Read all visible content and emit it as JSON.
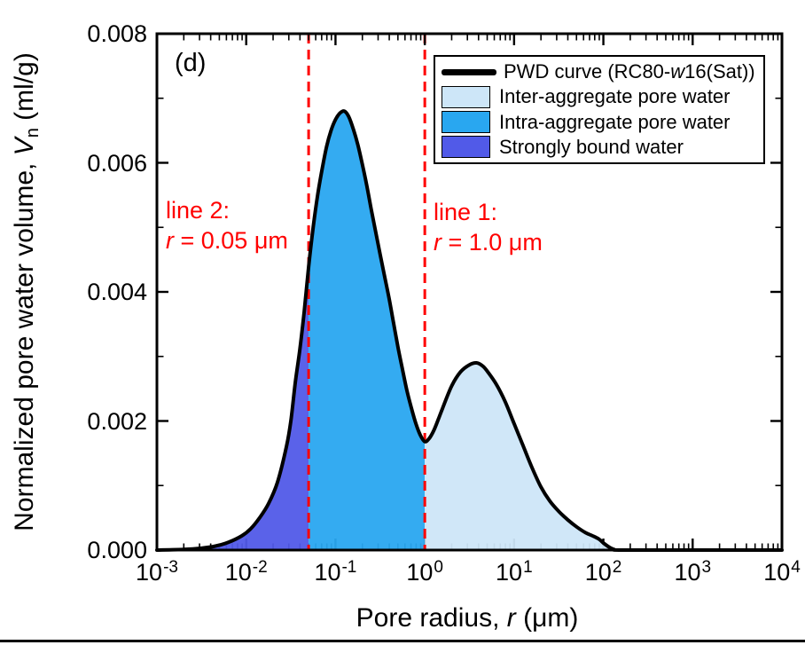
{
  "figure": {
    "panel_label": "(d)"
  },
  "colors": {
    "curve": "#000000",
    "annotation_red": "#FF0000",
    "inter_aggregate": "#CDE6F8",
    "intra_aggregate": "#29A7F0",
    "strongly_bound": "#515AE8",
    "axis": "#000000"
  },
  "axes": {
    "x": {
      "title_pre": "Pore radius, ",
      "title_italic": "r",
      "title_post": " (μm)"
    },
    "y": {
      "title_pre": "Normalized pore water volume, ",
      "title_italic": "V",
      "title_sub": "n",
      "title_post": " (ml/g)"
    }
  },
  "legend": {
    "pwd": {
      "pre": "PWD curve (RC80-",
      "italic": "w",
      "post": "16(Sat))"
    },
    "items": [
      {
        "label": "Inter-aggregate pore water",
        "color": "#CDE6F8"
      },
      {
        "label": "Intra-aggregate pore water",
        "color": "#29A7F0"
      },
      {
        "label": "Strongly bound water",
        "color": "#515AE8"
      }
    ]
  },
  "annotations": {
    "line2": {
      "title": "line 2:",
      "r_italic": "r",
      "r_text": " = 0.05 μm"
    },
    "line1": {
      "title": "line 1:",
      "r_italic": "r",
      "r_text": " = 1.0 μm"
    }
  },
  "chart_data": {
    "type": "area",
    "title": "",
    "xlabel": "Pore radius, r (μm)",
    "ylabel": "Normalized pore water volume, Vn (ml/g)",
    "x_scale": "log",
    "xlim_log10": [
      -3,
      4
    ],
    "ylim": [
      0,
      0.008
    ],
    "x_tick_exponents": [
      -3,
      -2,
      -1,
      0,
      1,
      2,
      3,
      4
    ],
    "y_tick_values": [
      0,
      0.002,
      0.004,
      0.006,
      0.008
    ],
    "y_tick_labels": [
      "0.000",
      "0.002",
      "0.004",
      "0.006",
      "0.008"
    ],
    "y_minor_step": 0.001,
    "grid": false,
    "legend_position": "top-right",
    "series": [
      {
        "name": "PWD curve (RC80-w16(Sat))",
        "points_log10r_v": [
          [
            -3.0,
            0
          ],
          [
            -2.7,
            1e-05
          ],
          [
            -2.5,
            3e-05
          ],
          [
            -2.35,
            6e-05
          ],
          [
            -2.2,
            0.00012
          ],
          [
            -2.05,
            0.00022
          ],
          [
            -1.95,
            0.00033
          ],
          [
            -1.85,
            0.0005
          ],
          [
            -1.75,
            0.00072
          ],
          [
            -1.65,
            0.00105
          ],
          [
            -1.55,
            0.0016
          ],
          [
            -1.5,
            0.002
          ],
          [
            -1.45,
            0.0026
          ],
          [
            -1.4,
            0.0031
          ],
          [
            -1.35,
            0.0037
          ],
          [
            -1.3,
            0.0044
          ],
          [
            -1.25,
            0.005
          ],
          [
            -1.2,
            0.0055
          ],
          [
            -1.15,
            0.0059
          ],
          [
            -1.1,
            0.00625
          ],
          [
            -1.05,
            0.0065
          ],
          [
            -1.0,
            0.00667
          ],
          [
            -0.95,
            0.00677
          ],
          [
            -0.9,
            0.0068
          ],
          [
            -0.85,
            0.00671
          ],
          [
            -0.8,
            0.00652
          ],
          [
            -0.75,
            0.00628
          ],
          [
            -0.7,
            0.00598
          ],
          [
            -0.65,
            0.00565
          ],
          [
            -0.6,
            0.00528
          ],
          [
            -0.55,
            0.00493
          ],
          [
            -0.5,
            0.00458
          ],
          [
            -0.45,
            0.00424
          ],
          [
            -0.4,
            0.0039
          ],
          [
            -0.35,
            0.00352
          ],
          [
            -0.3,
            0.00314
          ],
          [
            -0.25,
            0.0028
          ],
          [
            -0.2,
            0.00247
          ],
          [
            -0.15,
            0.0022
          ],
          [
            -0.1,
            0.00196
          ],
          [
            -0.05,
            0.00178
          ],
          [
            0.0,
            0.00168
          ],
          [
            0.05,
            0.00173
          ],
          [
            0.1,
            0.00185
          ],
          [
            0.15,
            0.00202
          ],
          [
            0.2,
            0.0022
          ],
          [
            0.3,
            0.00254
          ],
          [
            0.4,
            0.00276
          ],
          [
            0.5,
            0.00287
          ],
          [
            0.58,
            0.0029
          ],
          [
            0.65,
            0.00285
          ],
          [
            0.7,
            0.00277
          ],
          [
            0.8,
            0.00257
          ],
          [
            0.9,
            0.0023
          ],
          [
            1.0,
            0.00196
          ],
          [
            1.1,
            0.00162
          ],
          [
            1.2,
            0.00128
          ],
          [
            1.3,
            0.00098
          ],
          [
            1.4,
            0.00076
          ],
          [
            1.5,
            0.0006
          ],
          [
            1.6,
            0.00047
          ],
          [
            1.7,
            0.00036
          ],
          [
            1.8,
            0.00027
          ],
          [
            1.88,
            0.00022
          ],
          [
            1.95,
            0.00017
          ],
          [
            2.0,
            0.00011
          ],
          [
            2.06,
            5e-05
          ],
          [
            2.12,
            1e-05
          ],
          [
            2.2,
            0
          ],
          [
            3.0,
            0
          ],
          [
            4.0,
            0
          ]
        ]
      }
    ],
    "regions": [
      {
        "name": "Strongly bound water",
        "log10_range": [
          -3,
          -1.30103
        ],
        "color": "#515AE8"
      },
      {
        "name": "Intra-aggregate pore water",
        "log10_range": [
          -1.30103,
          0
        ],
        "color": "#29A7F0"
      },
      {
        "name": "Inter-aggregate pore water",
        "log10_range": [
          0,
          4
        ],
        "color": "#CDE6F8"
      }
    ],
    "vlines": [
      {
        "name": "line 1",
        "r_um": 1.0,
        "log10": 0,
        "color": "#FF0000",
        "style": "dashed"
      },
      {
        "name": "line 2",
        "r_um": 0.05,
        "log10": -1.30103,
        "color": "#FF0000",
        "style": "dashed"
      }
    ],
    "notable_points": {
      "main_peak": {
        "r_um": 0.125,
        "v": 0.0068
      },
      "valley": {
        "r_um": 1.0,
        "v": 0.00168
      },
      "second_peak": {
        "r_um": 3.8,
        "v": 0.0029
      },
      "curve_reaches_zero_r_um": 150
    }
  }
}
